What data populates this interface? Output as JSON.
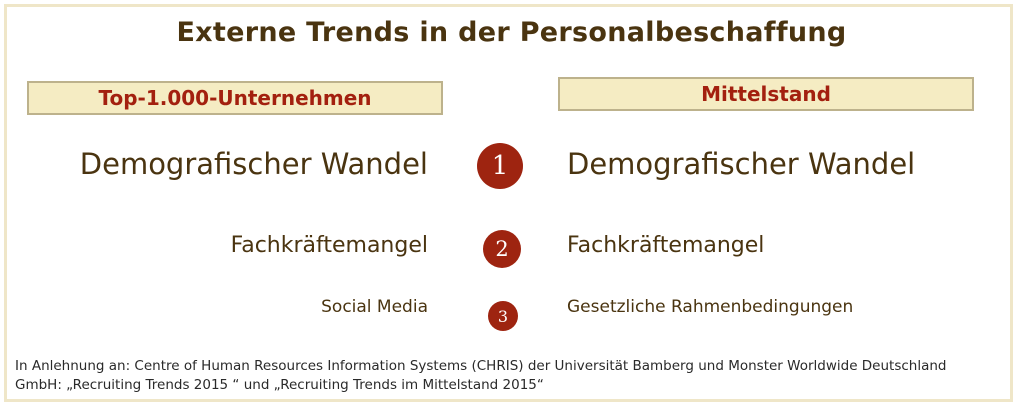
{
  "title": "Externe Trends in der Personalbeschaffung",
  "columns": {
    "left": "Top-1.000-Unternehmen",
    "right": "Mittelstand"
  },
  "rows": [
    {
      "rank": "1",
      "left": "Demografischer Wandel",
      "right": "Demografischer Wandel"
    },
    {
      "rank": "2",
      "left": "Fachkräftemangel",
      "right": "Fachkräftemangel"
    },
    {
      "rank": "3",
      "left": "Social Media",
      "right": "Gesetzliche Rahmenbedingungen"
    }
  ],
  "source": {
    "line1": "In Anlehnung an: Centre of Human Resources Information Systems (CHRIS) der Universität Bamberg und Monster Worldwide Deutschland",
    "line2": "GmbH: „Recruiting Trends 2015 “ und „Recruiting Trends im Mittelstand 2015“"
  },
  "colors": {
    "title": "#4a3410",
    "accent": "#9e2410",
    "header_bg": "#f5ecc3",
    "frame": "#efe6c8"
  }
}
